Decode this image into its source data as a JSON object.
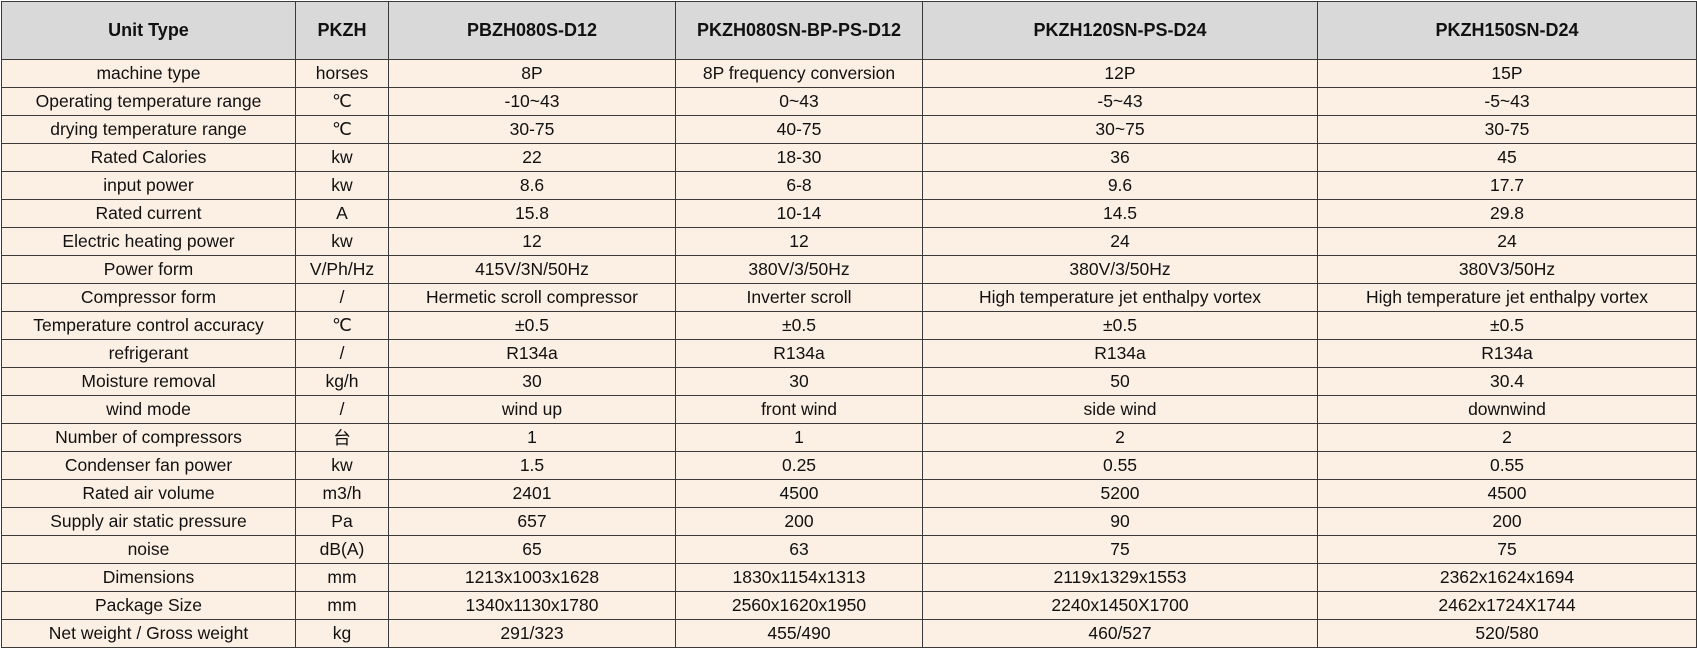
{
  "table": {
    "header": [
      "Unit Type",
      "PKZH",
      "PBZH080S-D12",
      "PKZH080SN-BP-PS-D12",
      "PKZH120SN-PS-D24",
      "PKZH150SN-D24"
    ],
    "rows": [
      [
        "machine type",
        "horses",
        "8P",
        "8P frequency conversion",
        "12P",
        "15P"
      ],
      [
        "Operating temperature range",
        "℃",
        "-10~43",
        "0~43",
        "-5~43",
        "-5~43"
      ],
      [
        "drying temperature range",
        "℃",
        "30-75",
        "40-75",
        "30~75",
        "30-75"
      ],
      [
        "Rated Calories",
        "kw",
        "22",
        "18-30",
        "36",
        "45"
      ],
      [
        "input power",
        "kw",
        "8.6",
        "6-8",
        "9.6",
        "17.7"
      ],
      [
        "Rated current",
        "A",
        "15.8",
        "10-14",
        "14.5",
        "29.8"
      ],
      [
        "Electric heating power",
        "kw",
        "12",
        "12",
        "24",
        "24"
      ],
      [
        "Power form",
        "V/Ph/Hz",
        "415V/3N/50Hz",
        "380V/3/50Hz",
        "380V/3/50Hz",
        "380V3/50Hz"
      ],
      [
        "Compressor form",
        "/",
        "Hermetic scroll compressor",
        "Inverter scroll",
        "High temperature jet enthalpy vortex",
        "High temperature jet enthalpy vortex"
      ],
      [
        "Temperature control accuracy",
        "℃",
        "±0.5",
        "±0.5",
        "±0.5",
        "±0.5"
      ],
      [
        "refrigerant",
        "/",
        "R134a",
        "R134a",
        "R134a",
        "R134a"
      ],
      [
        "Moisture removal",
        "kg/h",
        "30",
        "30",
        "50",
        "30.4"
      ],
      [
        "wind mode",
        "/",
        "wind up",
        "front wind",
        "side wind",
        "downwind"
      ],
      [
        "Number of compressors",
        "台",
        "1",
        "1",
        "2",
        "2"
      ],
      [
        "Condenser fan power",
        "kw",
        "1.5",
        "0.25",
        "0.55",
        "0.55"
      ],
      [
        "Rated air volume",
        "m3/h",
        "2401",
        "4500",
        "5200",
        "4500"
      ],
      [
        "Supply air static pressure",
        "Pa",
        "657",
        "200",
        "90",
        "200"
      ],
      [
        "noise",
        "dB(A)",
        "65",
        "63",
        "75",
        "75"
      ],
      [
        "Dimensions",
        "mm",
        "1213x1003x1628",
        "1830x1154x1313",
        "2119x1329x1553",
        "2362x1624x1694"
      ],
      [
        "Package Size",
        "mm",
        "1340x1130x1780",
        "2560x1620x1950",
        "2240x1450X1700",
        "2462x1724X1744"
      ],
      [
        "Net weight / Gross weight",
        "kg",
        "291/323",
        "455/490",
        "460/527",
        "520/580"
      ]
    ]
  }
}
